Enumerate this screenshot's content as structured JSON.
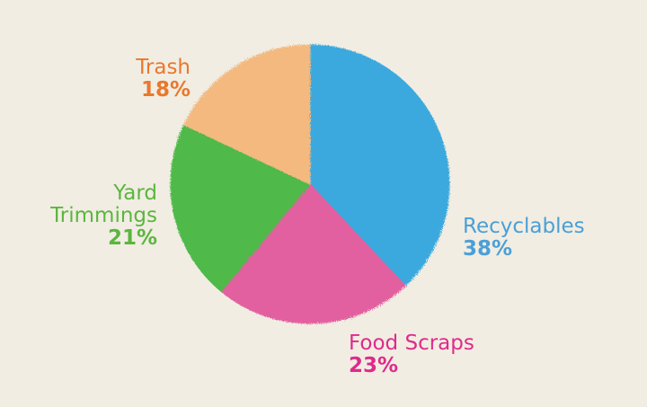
{
  "chart_data": {
    "type": "pie",
    "categories": [
      "Recyclables",
      "Food Scraps",
      "Yard Trimmings",
      "Trash"
    ],
    "values": [
      38,
      23,
      21,
      18
    ],
    "value_labels": [
      "38%",
      "23%",
      "21%",
      "18%"
    ],
    "colors": [
      "#3ba9dd",
      "#e2619f",
      "#4fb94a",
      "#f3b97f"
    ],
    "label_colors": [
      "#4b9fd6",
      "#e02a8a",
      "#5bb63d",
      "#e9782c"
    ]
  }
}
